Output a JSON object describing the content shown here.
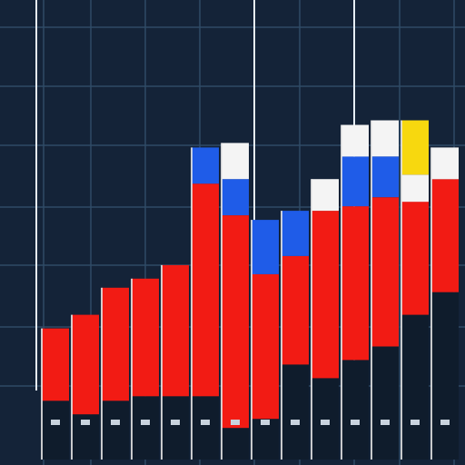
{
  "colors": {
    "background": "#142338",
    "grid": "#2f4a66",
    "red": "#f21b14",
    "blue": "#1f5ce8",
    "white": "#f4f4f4",
    "yellow": "#f7d80f",
    "base": "#0f1c2c",
    "stripe": "#e8e8e8",
    "tick": "#c9d3de"
  },
  "chart_data": {
    "type": "bar",
    "stacked": true,
    "grid": true,
    "legend": "none",
    "ylim": [
      0,
      100
    ],
    "categories": [
      "",
      "",
      "",
      "",
      "",
      "",
      "",
      "",
      "",
      "",
      "",
      "",
      "",
      ""
    ],
    "series": [
      {
        "color_key": "base",
        "values": [
          13,
          10,
          13,
          14,
          14,
          14,
          7,
          9,
          21,
          18,
          22,
          25,
          32,
          37
        ]
      },
      {
        "color_key": "red",
        "values": [
          16,
          22,
          25,
          26,
          29,
          47,
          47,
          32,
          24,
          37,
          34,
          33,
          25,
          25
        ]
      },
      {
        "color_key": "blue",
        "values": [
          0,
          0,
          0,
          0,
          0,
          8,
          8,
          12,
          10,
          0,
          11,
          9,
          0,
          0
        ]
      },
      {
        "color_key": "white",
        "values": [
          0,
          0,
          0,
          0,
          0,
          0,
          8,
          0,
          0,
          7,
          7,
          8,
          6,
          7
        ]
      },
      {
        "color_key": "yellow",
        "values": [
          0,
          0,
          0,
          0,
          0,
          0,
          0,
          0,
          0,
          0,
          0,
          0,
          12,
          0
        ]
      }
    ]
  }
}
